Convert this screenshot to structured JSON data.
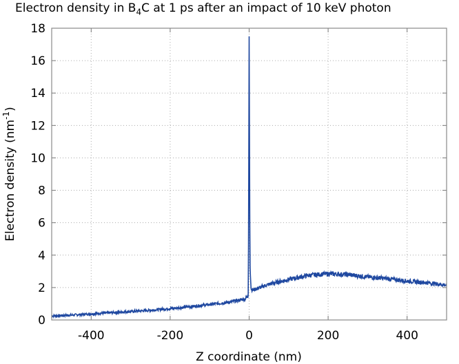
{
  "chart_data": {
    "type": "line",
    "title": "Electron density in B4C at 1 ps after an impact of 10 keV photon",
    "title_parts": {
      "pre": "Electron density in B",
      "sub": "4",
      "post": "C at 1 ps after an impact of 10 keV photon"
    },
    "xlabel": "Z coordinate (nm)",
    "ylabel": "Electron density (nm-1)",
    "ylabel_parts": {
      "pre": "Electron density (nm",
      "sup": "-1",
      "post": ")"
    },
    "xlim": [
      -500,
      500
    ],
    "ylim": [
      0,
      18
    ],
    "xticks": [
      -400,
      -200,
      0,
      200,
      400
    ],
    "yticks": [
      0,
      2,
      4,
      6,
      8,
      10,
      12,
      14,
      16,
      18
    ],
    "grid": true,
    "legend": null,
    "series": [
      {
        "name": "electron density",
        "color": "#1f48a0",
        "x": [
          -500,
          -450,
          -400,
          -350,
          -300,
          -250,
          -200,
          -150,
          -100,
          -50,
          -10,
          -2,
          0,
          2,
          5,
          10,
          50,
          100,
          150,
          200,
          250,
          300,
          350,
          400,
          450,
          500
        ],
        "y": [
          0.25,
          0.3,
          0.38,
          0.45,
          0.52,
          0.6,
          0.7,
          0.82,
          0.95,
          1.1,
          1.3,
          1.5,
          17.5,
          3.5,
          1.9,
          1.85,
          2.2,
          2.5,
          2.75,
          2.85,
          2.8,
          2.65,
          2.55,
          2.4,
          2.3,
          2.15
        ]
      }
    ]
  }
}
